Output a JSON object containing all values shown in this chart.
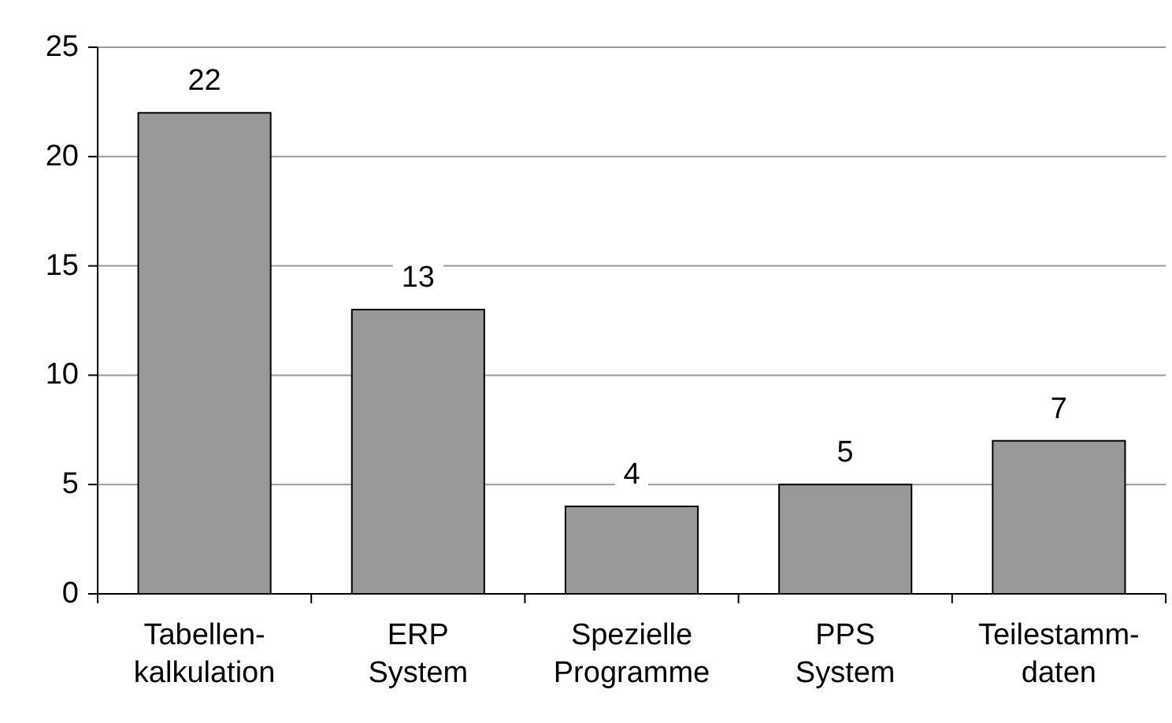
{
  "chart_data": {
    "type": "bar",
    "categories": [
      "Tabellen-\nkalkulation",
      "ERP\nSystem",
      "Spezielle\nProgramme",
      "PPS\nSystem",
      "Teilestamm-\ndaten"
    ],
    "values": [
      22,
      13,
      4,
      5,
      7
    ],
    "color": "#999999",
    "ylim": [
      0,
      25
    ],
    "yticks": [
      0,
      5,
      10,
      15,
      20,
      25
    ],
    "grid": "y",
    "data_labels": true
  }
}
